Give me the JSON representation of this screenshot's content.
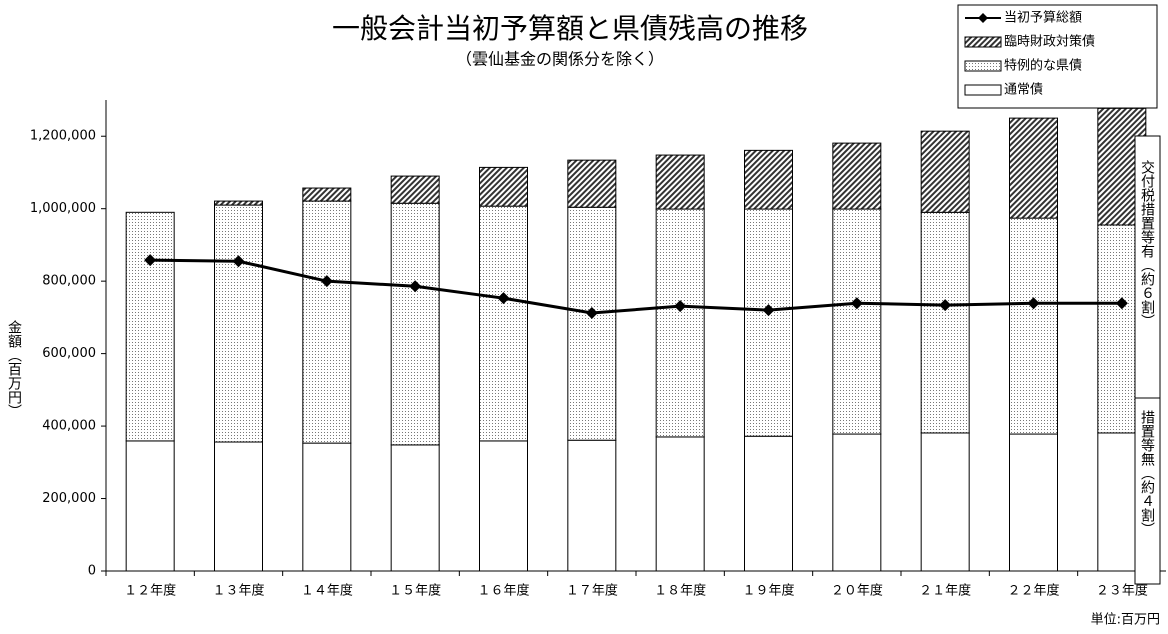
{
  "chart_data": {
    "type": "bar",
    "title": "一般会計当初予算額と県債残高の推移",
    "subtitle": "（雲仙基金の関係分を除く）",
    "y_label": "金額（百万円）",
    "unit_note": "単位:百万円",
    "annotations": [
      "交付税措置等有（約６割）",
      "措置等無（約４割）"
    ],
    "categories": [
      "１２年度",
      "１３年度",
      "１４年度",
      "１５年度",
      "１６年度",
      "１７年度",
      "１８年度",
      "１９年度",
      "２０年度",
      "２１年度",
      "２２年度",
      "２３年度"
    ],
    "series": [
      {
        "name": "通常債",
        "color": "#000000",
        "pattern": "none",
        "values": [
          359000,
          356000,
          353000,
          348000,
          359000,
          361000,
          370000,
          372000,
          378000,
          381000,
          378000,
          381000
        ]
      },
      {
        "name": "特例的な県債",
        "color": "#000000",
        "pattern": "dots",
        "values": [
          631000,
          654000,
          668000,
          667000,
          648000,
          643000,
          629000,
          627000,
          621000,
          609000,
          596000,
          574000
        ]
      },
      {
        "name": "臨時財政対策債",
        "color": "#000000",
        "pattern": "hatch",
        "values": [
          0,
          11000,
          36000,
          75000,
          107000,
          130000,
          149000,
          162000,
          182000,
          224000,
          276000,
          322000
        ]
      },
      {
        "name": "当初予算総額",
        "type": "line",
        "color": "#000000",
        "values": [
          858000,
          855000,
          800000,
          786000,
          753000,
          712000,
          731000,
          720000,
          739000,
          734000,
          739000,
          739000
        ]
      }
    ],
    "ylim": [
      0,
      1300000
    ],
    "yticks": [
      0,
      {
        "value": 200000,
        "label": "200,000"
      },
      {
        "value": 400000,
        "label": "400,000"
      },
      {
        "value": 600000,
        "label": "600,000"
      },
      {
        "value": 800000,
        "label": "800,000"
      },
      {
        "value": 1000000,
        "label": "1,000,000"
      },
      {
        "value": 1200000,
        "label": "1,200,000"
      }
    ],
    "legend": "top-right",
    "stacked": true
  }
}
